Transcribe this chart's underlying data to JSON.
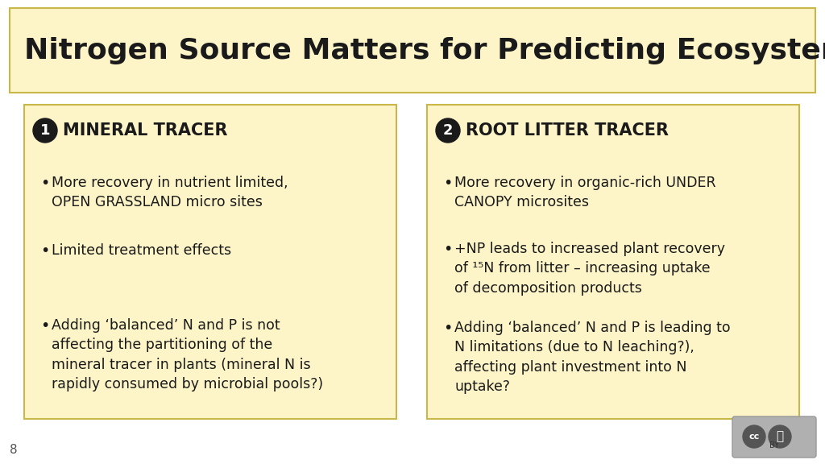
{
  "bg_color": "#ffffff",
  "title_bg": "#fdf5c8",
  "title_border": "#c8b84a",
  "box_bg": "#fdf5c8",
  "box_border": "#c8b84a",
  "title_text": "Nitrogen Source Matters for Predicting Ecosystem Response",
  "title_fontsize": 26,
  "slide_number": "8",
  "left_header_num": "1",
  "left_header_text": "MINERAL TRACER",
  "left_bullets": [
    "More recovery in nutrient limited,\nOPEN GRASSLAND micro sites",
    "Limited treatment effects",
    "Adding ‘balanced’ N and P is not\naffecting the partitioning of the\nmineral tracer in plants (mineral N is\nrapidly consumed by microbial pools?)"
  ],
  "right_header_num": "2",
  "right_header_text": "ROOT LITTER TRACER",
  "right_bullets": [
    "More recovery in organic-rich UNDER\nCANOPY microsites",
    "+NP leads to increased plant recovery\nof ¹⁵N from litter – increasing uptake\nof decomposition products",
    "Adding ‘balanced’ N and P is leading to\nN limitations (due to N leaching?),\naffecting plant investment into N\nuptake?"
  ],
  "text_color": "#1a1a1a",
  "header_fontsize": 15,
  "bullet_fontsize": 12.5
}
